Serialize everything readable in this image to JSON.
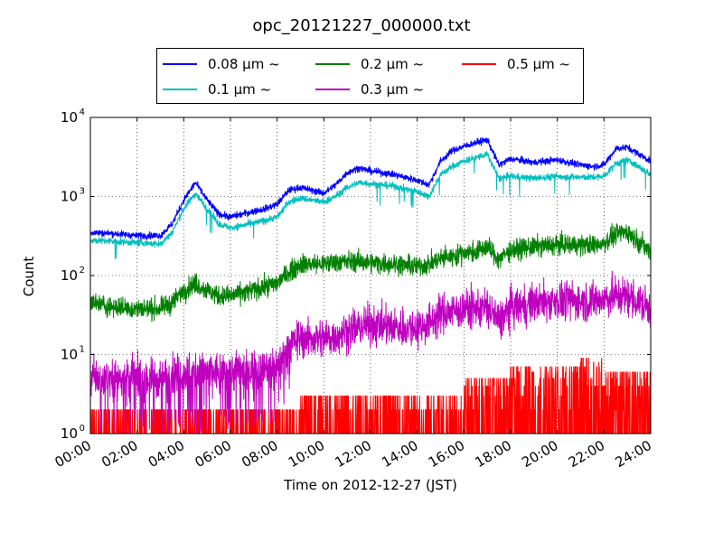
{
  "chart_data": {
    "type": "line",
    "title": "opc_20121227_000000.txt",
    "xlabel": "Time on 2012-12-27 (JST)",
    "ylabel": "Count",
    "x_range_hours": [
      0,
      24
    ],
    "ylim": [
      1,
      10000
    ],
    "yscale": "log",
    "grid": true,
    "legend_position": "top-center (outside, above axes)",
    "x_tick_labels": [
      "00:00",
      "02:00",
      "04:00",
      "06:00",
      "08:00",
      "10:00",
      "12:00",
      "14:00",
      "16:00",
      "18:00",
      "20:00",
      "22:00",
      "24:00"
    ],
    "y_ticks": [
      {
        "base": "10",
        "exp": "0"
      },
      {
        "base": "10",
        "exp": "1"
      },
      {
        "base": "10",
        "exp": "2"
      },
      {
        "base": "10",
        "exp": "3"
      },
      {
        "base": "10",
        "exp": "4"
      }
    ],
    "x_hours": [
      0,
      1,
      2,
      3,
      3.5,
      4,
      4.5,
      5,
      5.5,
      6,
      7,
      7.5,
      8,
      8.5,
      9,
      10,
      10.5,
      11,
      11.5,
      12,
      13,
      14,
      14.5,
      15,
      15.5,
      16,
      16.5,
      17,
      17.5,
      18,
      19,
      20,
      21,
      21.5,
      22,
      22.5,
      23,
      24
    ],
    "series": [
      {
        "name": "0.08 μm ~",
        "color": "#0000ff",
        "noise": 0.06,
        "values": [
          350,
          340,
          320,
          320,
          450,
          900,
          1500,
          900,
          600,
          550,
          650,
          700,
          800,
          1200,
          1300,
          1100,
          1400,
          2000,
          2300,
          2100,
          1900,
          1600,
          1400,
          2800,
          3800,
          4300,
          4800,
          5200,
          2500,
          3000,
          2700,
          2900,
          2500,
          2400,
          2500,
          4000,
          4200,
          2800
        ]
      },
      {
        "name": "0.1 μm ~",
        "color": "#00bfbf",
        "noise": 0.06,
        "values": [
          280,
          270,
          260,
          250,
          350,
          700,
          1100,
          700,
          450,
          400,
          460,
          500,
          550,
          850,
          950,
          850,
          1000,
          1300,
          1500,
          1450,
          1350,
          1150,
          1000,
          1900,
          2400,
          2800,
          3100,
          3400,
          1700,
          1800,
          1700,
          1800,
          1750,
          1750,
          1800,
          2600,
          2900,
          1900
        ]
      },
      {
        "name": "0.2 μm ~",
        "color": "#008000",
        "noise": 0.18,
        "values": [
          45,
          40,
          38,
          38,
          45,
          65,
          80,
          65,
          55,
          55,
          65,
          72,
          80,
          110,
          140,
          140,
          150,
          150,
          150,
          145,
          140,
          130,
          140,
          165,
          175,
          195,
          200,
          230,
          160,
          210,
          230,
          245,
          245,
          240,
          260,
          330,
          360,
          200
        ]
      },
      {
        "name": "0.3 μm ~",
        "color": "#bf00bf",
        "noise": 0.35,
        "values": [
          5,
          5,
          5,
          5,
          5.5,
          6,
          6,
          6,
          6,
          6,
          6.5,
          6.5,
          7,
          13,
          16,
          16,
          17,
          20,
          22,
          24,
          22,
          22,
          25,
          33,
          35,
          38,
          38,
          40,
          26,
          38,
          45,
          48,
          48,
          47,
          50,
          55,
          55,
          38
        ]
      }
    ],
    "sparse_series": [
      {
        "name": "0.5 μm ~",
        "color": "#ff0000",
        "note": "integer counts 0-9; zero values fall below the axis",
        "max_count_by_hour": [
          2,
          2,
          2,
          2,
          2,
          2,
          2,
          2,
          2,
          3,
          3,
          3,
          3,
          3,
          3,
          3,
          5,
          5,
          7,
          7,
          7,
          9,
          6,
          6
        ]
      }
    ]
  }
}
